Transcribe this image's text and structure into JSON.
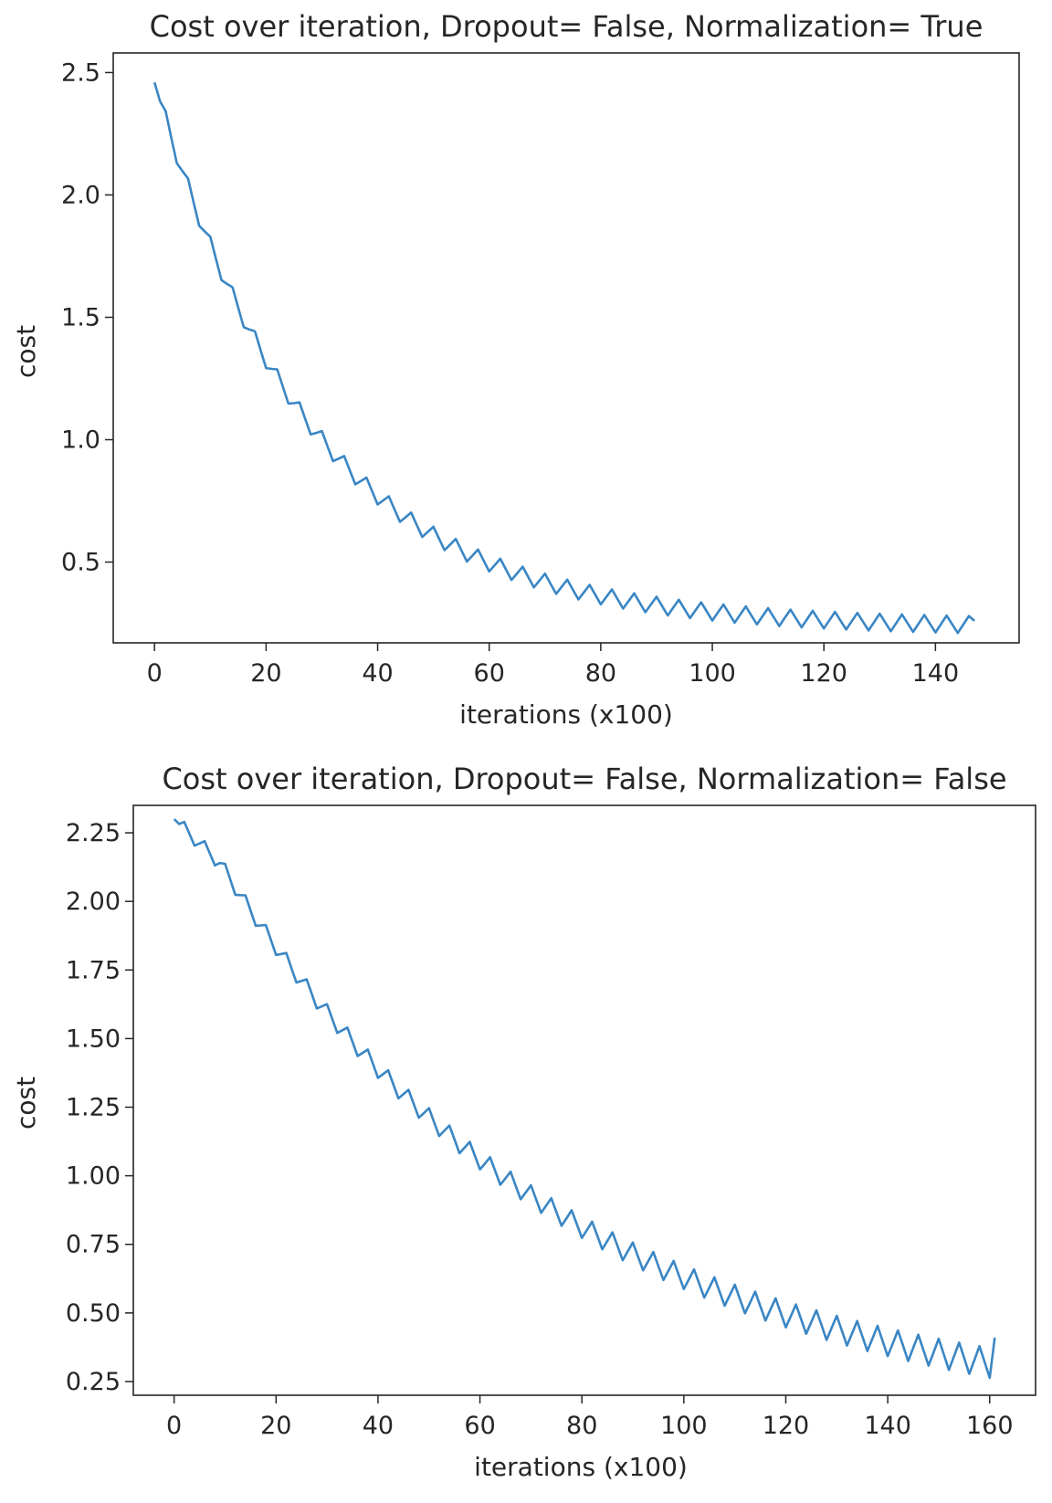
{
  "chart_data": [
    {
      "type": "line",
      "title": "Cost over iteration, Dropout= False, Normalization= True",
      "xlabel": "iterations (x100)",
      "ylabel": "cost",
      "xlim": [
        -7.4,
        155
      ],
      "ylim": [
        0.17,
        2.58
      ],
      "xticks": [
        0,
        20,
        40,
        60,
        80,
        100,
        120,
        140
      ],
      "yticks": [
        0.5,
        1.0,
        1.5,
        2.0,
        2.5
      ],
      "ytick_labels": [
        "0.5",
        "1.0",
        "1.5",
        "2.0",
        "2.5"
      ],
      "grid": false,
      "line_color": "#3a86c4",
      "series": [
        {
          "n_points": 148,
          "start": 2.46,
          "end": 0.26,
          "decay": {
            "a": 0.232,
            "b": 2.228,
            "rate": 0.0355
          },
          "ripple": {
            "period": 4,
            "amplitude": 0.035,
            "growth": 0.0
          }
        }
      ]
    },
    {
      "type": "line",
      "title": "Cost over iteration, Dropout= False, Normalization= False",
      "xlabel": "iterations (x100)",
      "ylabel": "cost",
      "xlim": [
        -8,
        169
      ],
      "ylim": [
        0.2,
        2.35
      ],
      "xticks": [
        0,
        20,
        40,
        60,
        80,
        100,
        120,
        140,
        160
      ],
      "yticks": [
        0.25,
        0.5,
        0.75,
        1.0,
        1.25,
        1.5,
        1.75,
        2.0,
        2.25
      ],
      "ytick_labels": [
        "0.25",
        "0.50",
        "0.75",
        "1.00",
        "1.25",
        "1.50",
        "1.75",
        "2.00",
        "2.25"
      ],
      "grid": false,
      "line_color": "#3a86c4",
      "series": [
        {
          "n_points": 162,
          "start": 2.3,
          "end": 0.41,
          "decay": {
            "a": 0.1,
            "b": 2.2,
            "rate": 0.0148,
            "shoulder": 9
          },
          "ripple": {
            "period": 4,
            "amplitude": 0.025,
            "growth": 0.03
          }
        }
      ]
    }
  ]
}
